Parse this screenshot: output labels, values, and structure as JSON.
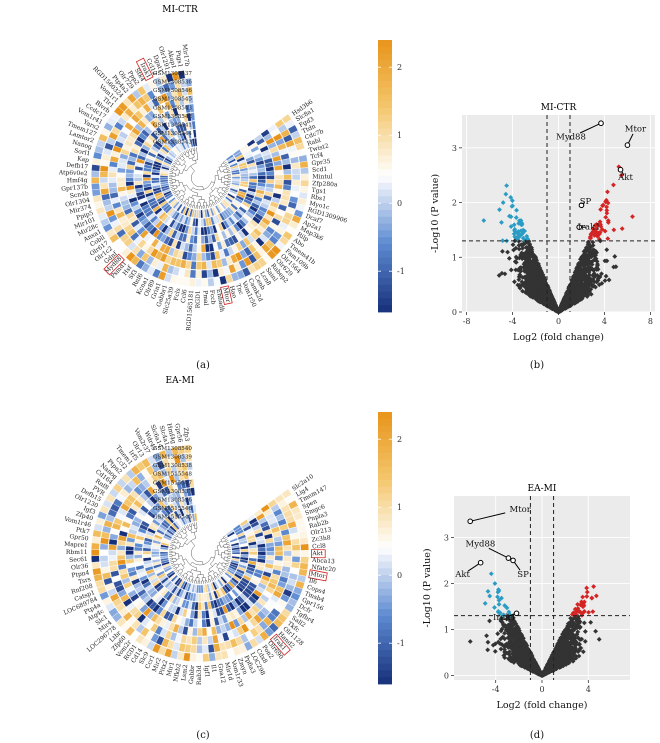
{
  "panels": [
    {
      "id": "a",
      "label": "(a)"
    },
    {
      "id": "b",
      "label": "(b)"
    },
    {
      "id": "c",
      "label": "(c)"
    },
    {
      "id": "d",
      "label": "(d)"
    }
  ],
  "heatmaps": [
    {
      "title": "MI-CTR",
      "samples": [
        "GSM1308537",
        "GSM1308536",
        "GSM1308546",
        "GSM1308545",
        "GSM1308543",
        "GSM1308542",
        "GSM1308541",
        "GSM1308544",
        "GSM1308543"
      ],
      "genes": [
        "Hsd3b6",
        "Slc8a1",
        "Fgd3",
        "Ttdn",
        "Cdc7b",
        "Rabl",
        "Twist2",
        "Tcf4",
        "Gpr35",
        "Scd1",
        "Mintul",
        "Zfp280a",
        "Tgs1",
        "Rbs1",
        "Myo1c",
        "RGD1309906",
        "Dcaf7",
        "Ap2a1",
        "Map3k6",
        "Rilp",
        "Abo",
        "Tmem41b",
        "Fam109b",
        "Olr1564",
        "Olr629",
        "Rabep2",
        "Sainl",
        "Lcn8",
        "Cenb",
        "Camk2d",
        "Vom1r50",
        "Tnc",
        "Hao",
        "Mtor",
        "Ehhadh",
        "Fccb",
        "Pmal",
        "RGD1",
        "RGD1565181",
        "Ccl6",
        "Fcls",
        "Slc25a39",
        "Gabbr1",
        "Grin1",
        "Olr89",
        "Kcna1",
        "Rnf6",
        "Sf3",
        "Hsf",
        "Psmd1",
        "Myd88",
        "Gdnf",
        "Olr1c2",
        "Olr617",
        "Cobll",
        "Anxa1",
        "Mir28c",
        "Mir101",
        "Ppip5",
        "Mir374",
        "Olr1304",
        "Scn4b",
        "Gpr137b",
        "Hmf4g",
        "Atp6v0e2",
        "Defb17",
        "Kap",
        "Sorl1",
        "Nanog",
        "Lamtor2",
        "Tmem127",
        "Yars2",
        "Vom1r41",
        "Ccdc17",
        "Blvrb",
        "Tlr1",
        "Vom1r1",
        "RGD1560324",
        "Ptp4a2",
        "Olr729",
        "Ppp2",
        "Stk4",
        "Irak1",
        "Ccl12",
        "Dgat1",
        "Olr1291",
        "Akap1",
        "Ptgs1",
        "Mir17b"
      ],
      "scale": {
        "ticks": [
          "2",
          "1",
          "0",
          "-1"
        ],
        "min": -1.6,
        "max": 2.4,
        "colors": [
          "#17307a",
          "#5c8ad1",
          "#ffffff",
          "#f4c76e",
          "#e8941a"
        ]
      },
      "highlighted": [
        "Irak1",
        "Mtor",
        "Myd88"
      ],
      "cell_values": "diverging z-score"
    },
    {
      "title": "EA-MI",
      "samples": [
        "GSM1308540",
        "GSM1308539",
        "GSM1308538",
        "GSM1515548",
        "GSM1515547",
        "GSM1308537",
        "GSM1308536",
        "GSM1515546",
        "GSM1515545"
      ],
      "genes": [
        "Slc2a10",
        "Lig4",
        "Tmem147",
        "Spen",
        "Smgc6",
        "Pnpla3",
        "Rab2b",
        "Olr213",
        "Zc3h8",
        "Ccl8",
        "Akt",
        "Abca13",
        "Nfatc20",
        "Mtor",
        "Il6",
        "Cops4",
        "Tmsb4",
        "Gpr156",
        "Dcfr",
        "Tgfbr4",
        "Sall2",
        "Tkfc",
        "Olr1128",
        "Hand2",
        "Irak1",
        "Olr690",
        "Pon2",
        "Cdx8",
        "LOC298",
        "Ppfia3",
        "Zmyn",
        "Vom1r33",
        "Mir1d",
        "Gna12",
        "Il1",
        "Igf1",
        "Rab3d",
        "Gabbr",
        "Lsm2",
        "Nfkb2",
        "Mir1",
        "Pitx2",
        "Mir2",
        "Ccr1",
        "Slc9",
        "Cd14",
        "RGD1",
        "Vom2r",
        "Zfp60",
        "Ltbr",
        "LOC296778",
        "Mir4",
        "Slc1",
        "Atg4c",
        "Ptp4a",
        "LOC689784",
        "Catsp1",
        "Rnf208",
        "Tsrs",
        "Ptpn4",
        "Olr36",
        "Sec61",
        "Rbm11",
        "Mapre1",
        "Gpr50",
        "Ptk7",
        "Vom1r46",
        "Zfp40",
        "Igf3",
        "Olr1230",
        "Defb15",
        "PVR",
        "Rnf8",
        "Cd164",
        "Nanog",
        "Ptpn2",
        "Ccl2",
        "Tmem1",
        "Irf5",
        "Olr13",
        "Vom2r37",
        "Wdr45",
        "Slc6a14",
        "Slc4a1",
        "Hmf4g",
        "Gpr56",
        "Zfp3"
      ],
      "scale": {
        "ticks": [
          "2",
          "1",
          "0",
          "-1"
        ],
        "min": -1.6,
        "max": 2.4,
        "colors": [
          "#17307a",
          "#5c8ad1",
          "#ffffff",
          "#f4c76e",
          "#e8941a"
        ]
      },
      "highlighted": [
        "Akt",
        "Mtor",
        "Irak1",
        "Myd88",
        "SP"
      ],
      "cell_values": "diverging z-score"
    }
  ],
  "chart_data": [
    {
      "type": "scatter",
      "title": "MI-CTR",
      "xlabel": "Log2 (fold change)",
      "ylabel": "-Log10 (P value)",
      "xlim": [
        -8.4,
        8.4
      ],
      "ylim": [
        0,
        3.6
      ],
      "xticks": [
        -8,
        -4,
        0,
        4,
        8
      ],
      "yticks": [
        0,
        1,
        2,
        3
      ],
      "thresholds": {
        "x": [
          -1,
          1
        ],
        "y": 1.3
      },
      "colors": {
        "down": "#2b9cc4",
        "up": "#d42424",
        "ns": "#333333"
      },
      "labeled": [
        {
          "name": "Mtor",
          "x": 6.0,
          "y": 3.05
        },
        {
          "name": "Myd88",
          "x": 3.7,
          "y": 3.45
        },
        {
          "name": "Akt",
          "x": 5.4,
          "y": 2.6
        },
        {
          "name": "SP",
          "x": 2.0,
          "y": 1.95
        },
        {
          "name": "Irak1",
          "x": 1.8,
          "y": 1.55
        }
      ],
      "grid": true
    },
    {
      "type": "scatter",
      "title": "EA-MI",
      "xlabel": "Log2 (fold change)",
      "ylabel": "-Log10 (P value)",
      "xlim": [
        -7.6,
        7.6
      ],
      "ylim": [
        -0.1,
        3.9
      ],
      "xticks": [
        -4,
        0,
        4
      ],
      "yticks": [
        0,
        1,
        2,
        3
      ],
      "thresholds": {
        "x": [
          -1,
          1
        ],
        "y": 1.3
      },
      "colors": {
        "down": "#2b9cc4",
        "up": "#d42424",
        "ns": "#333333"
      },
      "labeled": [
        {
          "name": "Mtor",
          "x": -6.2,
          "y": 3.35
        },
        {
          "name": "Myd88",
          "x": -2.9,
          "y": 2.55
        },
        {
          "name": "SP",
          "x": -2.5,
          "y": 2.5
        },
        {
          "name": "Akt",
          "x": -5.3,
          "y": 2.45
        },
        {
          "name": "Irak1",
          "x": -2.2,
          "y": 1.35
        }
      ],
      "grid": true
    }
  ]
}
